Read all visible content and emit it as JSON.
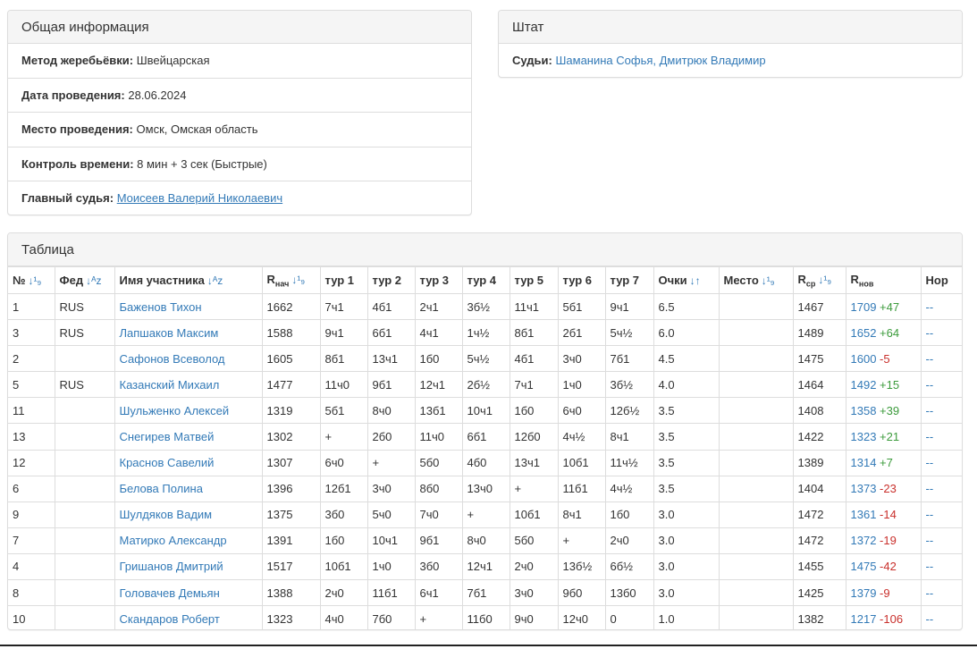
{
  "info": {
    "title": "Общая информация",
    "rows": [
      {
        "label": "Метод жеребьёвки:",
        "value": "Швейцарская",
        "link": false
      },
      {
        "label": "Дата проведения:",
        "value": "28.06.2024",
        "link": false
      },
      {
        "label": "Место проведения:",
        "value": "Омск, Омская область",
        "link": false
      },
      {
        "label": "Контроль времени:",
        "value": "8 мин + 3 сек (Быстрые)",
        "link": false
      },
      {
        "label": "Главный судья:",
        "value": "Моисеев Валерий Николаевич",
        "link": true
      }
    ]
  },
  "staff": {
    "title": "Штат",
    "judges_label": "Судьи:",
    "judges": "Шаманина Софья, Дмитрюк Владимир"
  },
  "table": {
    "title": "Таблица",
    "headers": {
      "num": "№",
      "fed": "Фед",
      "name": "Имя участника",
      "r_start_main": "R",
      "r_start_sub": "нач",
      "rounds": [
        "тур 1",
        "тур 2",
        "тур 3",
        "тур 4",
        "тур 5",
        "тур 6",
        "тур 7"
      ],
      "points": "Очки",
      "place": "Место",
      "r_avg_main": "R",
      "r_avg_sub": "ср",
      "r_new_main": "R",
      "r_new_sub": "нов",
      "norm": "Нор"
    },
    "sort_icons": {
      "num": "sort-numeric-asc-icon",
      "fed": "sort-alpha-asc-icon",
      "name": "sort-alpha-asc-icon",
      "r_start": "sort-numeric-asc-icon",
      "points": "sort-both-icon",
      "place": "sort-numeric-asc-icon",
      "r_avg": "sort-numeric-asc-icon"
    },
    "rows": [
      {
        "num": "1",
        "fed": "RUS",
        "name": "Баженов Тихон",
        "r_start": "1662",
        "rounds": [
          "7ч1",
          "4б1",
          "2ч1",
          "3б½",
          "11ч1",
          "5б1",
          "9ч1"
        ],
        "points": "6.5",
        "place": "",
        "r_avg": "1467",
        "r_new": "1709",
        "delta": "+47",
        "norm": "--"
      },
      {
        "num": "3",
        "fed": "RUS",
        "name": "Лапшаков Максим",
        "r_start": "1588",
        "rounds": [
          "9ч1",
          "6б1",
          "4ч1",
          "1ч½",
          "8б1",
          "2б1",
          "5ч½"
        ],
        "points": "6.0",
        "place": "",
        "r_avg": "1489",
        "r_new": "1652",
        "delta": "+64",
        "norm": "--"
      },
      {
        "num": "2",
        "fed": "",
        "name": "Сафонов Всеволод",
        "r_start": "1605",
        "rounds": [
          "8б1",
          "13ч1",
          "1б0",
          "5ч½",
          "4б1",
          "3ч0",
          "7б1"
        ],
        "points": "4.5",
        "place": "",
        "r_avg": "1475",
        "r_new": "1600",
        "delta": "-5",
        "norm": "--"
      },
      {
        "num": "5",
        "fed": "RUS",
        "name": "Казанский Михаил",
        "r_start": "1477",
        "rounds": [
          "11ч0",
          "9б1",
          "12ч1",
          "2б½",
          "7ч1",
          "1ч0",
          "3б½"
        ],
        "points": "4.0",
        "place": "",
        "r_avg": "1464",
        "r_new": "1492",
        "delta": "+15",
        "norm": "--"
      },
      {
        "num": "11",
        "fed": "",
        "name": "Шульженко Алексей",
        "r_start": "1319",
        "rounds": [
          "5б1",
          "8ч0",
          "13б1",
          "10ч1",
          "1б0",
          "6ч0",
          "12б½"
        ],
        "points": "3.5",
        "place": "",
        "r_avg": "1408",
        "r_new": "1358",
        "delta": "+39",
        "norm": "--"
      },
      {
        "num": "13",
        "fed": "",
        "name": "Снегирев Матвей",
        "r_start": "1302",
        "rounds": [
          "+",
          "2б0",
          "11ч0",
          "6б1",
          "12б0",
          "4ч½",
          "8ч1"
        ],
        "points": "3.5",
        "place": "",
        "r_avg": "1422",
        "r_new": "1323",
        "delta": "+21",
        "norm": "--"
      },
      {
        "num": "12",
        "fed": "",
        "name": "Краснов Савелий",
        "r_start": "1307",
        "rounds": [
          "6ч0",
          "+",
          "5б0",
          "4б0",
          "13ч1",
          "10б1",
          "11ч½"
        ],
        "points": "3.5",
        "place": "",
        "r_avg": "1389",
        "r_new": "1314",
        "delta": "+7",
        "norm": "--"
      },
      {
        "num": "6",
        "fed": "",
        "name": "Белова Полина",
        "r_start": "1396",
        "rounds": [
          "12б1",
          "3ч0",
          "8б0",
          "13ч0",
          "+",
          "11б1",
          "4ч½"
        ],
        "points": "3.5",
        "place": "",
        "r_avg": "1404",
        "r_new": "1373",
        "delta": "-23",
        "norm": "--"
      },
      {
        "num": "9",
        "fed": "",
        "name": "Шулдяков Вадим",
        "r_start": "1375",
        "rounds": [
          "3б0",
          "5ч0",
          "7ч0",
          "+",
          "10б1",
          "8ч1",
          "1б0"
        ],
        "points": "3.0",
        "place": "",
        "r_avg": "1472",
        "r_new": "1361",
        "delta": "-14",
        "norm": "--"
      },
      {
        "num": "7",
        "fed": "",
        "name": "Матирко Александр",
        "r_start": "1391",
        "rounds": [
          "1б0",
          "10ч1",
          "9б1",
          "8ч0",
          "5б0",
          "+",
          "2ч0"
        ],
        "points": "3.0",
        "place": "",
        "r_avg": "1472",
        "r_new": "1372",
        "delta": "-19",
        "norm": "--"
      },
      {
        "num": "4",
        "fed": "",
        "name": "Гришанов Дмитрий",
        "r_start": "1517",
        "rounds": [
          "10б1",
          "1ч0",
          "3б0",
          "12ч1",
          "2ч0",
          "13б½",
          "6б½"
        ],
        "points": "3.0",
        "place": "",
        "r_avg": "1455",
        "r_new": "1475",
        "delta": "-42",
        "norm": "--"
      },
      {
        "num": "8",
        "fed": "",
        "name": "Головачев Демьян",
        "r_start": "1388",
        "rounds": [
          "2ч0",
          "11б1",
          "6ч1",
          "7б1",
          "3ч0",
          "9б0",
          "13б0"
        ],
        "points": "3.0",
        "place": "",
        "r_avg": "1425",
        "r_new": "1379",
        "delta": "-9",
        "norm": "--"
      },
      {
        "num": "10",
        "fed": "",
        "name": "Скандаров Роберт",
        "r_start": "1323",
        "rounds": [
          "4ч0",
          "7б0",
          "+",
          "11б0",
          "9ч0",
          "12ч0",
          "0"
        ],
        "points": "1.0",
        "place": "",
        "r_avg": "1382",
        "r_new": "1217",
        "delta": "-106",
        "norm": "--"
      }
    ]
  },
  "colors": {
    "link": "#337ab7",
    "positive": "#3c9b3c",
    "negative": "#c9302c",
    "border": "#dddddd",
    "heading_bg": "#f5f5f5"
  }
}
